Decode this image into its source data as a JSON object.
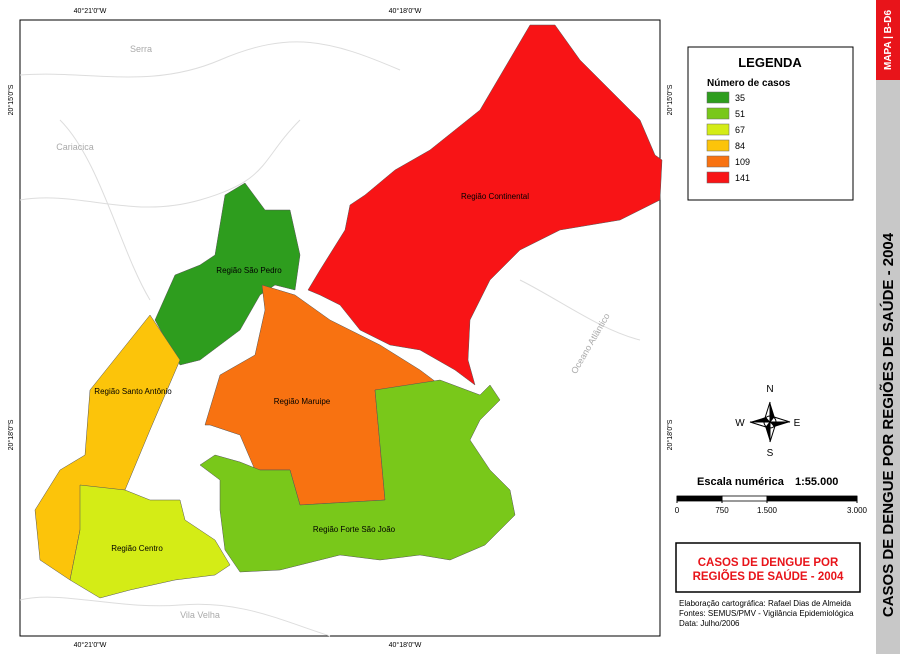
{
  "map": {
    "coords": {
      "top": [
        "40°21'0\"W",
        "40°18'0\"W"
      ],
      "bottom": [
        "40°21'0\"W",
        "40°18'0\"W"
      ],
      "left": [
        "20°15'0\"S",
        "20°18'0\"S"
      ],
      "right": [
        "20°15'0\"S",
        "20°18'0\"S"
      ]
    },
    "places": [
      "Serra",
      "Cariacica",
      "Vila Velha",
      "Oceano Atlântico"
    ],
    "regions": [
      {
        "name": "Região Continental",
        "color": "#f81416"
      },
      {
        "name": "Região São Pedro",
        "color": "#2e9d1e"
      },
      {
        "name": "Região Santo Antônio",
        "color": "#fcc40a"
      },
      {
        "name": "Região Centro",
        "color": "#d4ec16"
      },
      {
        "name": "Região Maruipe",
        "color": "#f87211"
      },
      {
        "name": "Região Forte São João",
        "color": "#79c81a"
      }
    ]
  },
  "legend": {
    "title": "LEGENDA",
    "subtitle": "Número de casos",
    "entries": [
      {
        "value": 35,
        "color": "#2e9d1e"
      },
      {
        "value": 51,
        "color": "#79c81a"
      },
      {
        "value": 67,
        "color": "#d4ec16"
      },
      {
        "value": 84,
        "color": "#fcc40a"
      },
      {
        "value": 109,
        "color": "#f87211"
      },
      {
        "value": 141,
        "color": "#f81416"
      }
    ]
  },
  "compass": {
    "n": "N",
    "s": "S",
    "e": "E",
    "w": "W"
  },
  "scale": {
    "label": "Escala numérica",
    "ratio": "1:55.000",
    "ticks": [
      0,
      750,
      {
        "value": 1500,
        "label": "1.500"
      },
      {
        "value": 3000,
        "label": "3.000"
      }
    ]
  },
  "title_box": {
    "title_lines": [
      "CASOS DE DENGUE POR",
      "REGIÕES DE SAÚDE - 2004"
    ],
    "credits": [
      "Elaboração cartográfica: Rafael Dias de Almeida",
      "Fontes: SEMUS/PMV - Vigilância Epidemiológica",
      "Data: Julho/2006"
    ]
  },
  "side": {
    "code": "MAPA | B-D6",
    "title": "CASOS DE DENGUE POR REGIÕES DE SAÚDE - 2004"
  }
}
